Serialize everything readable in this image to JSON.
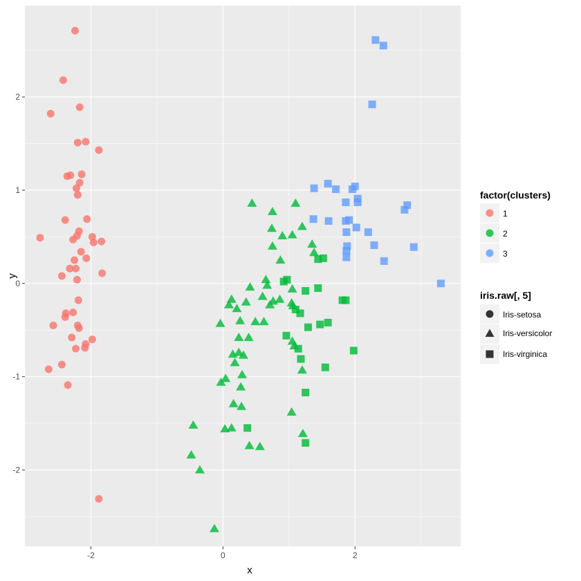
{
  "chart_data": {
    "type": "scatter",
    "xlabel": "x",
    "ylabel": "y",
    "xlim": [
      -3.0,
      3.6
    ],
    "ylim": [
      -2.82,
      2.98
    ],
    "x_ticks": [
      {
        "value": -2,
        "label": "-2"
      },
      {
        "value": 0,
        "label": "0"
      },
      {
        "value": 2,
        "label": "2"
      }
    ],
    "y_ticks": [
      {
        "value": -2,
        "label": "-2"
      },
      {
        "value": -1,
        "label": "-1"
      },
      {
        "value": 0,
        "label": "0"
      },
      {
        "value": 1,
        "label": "1"
      },
      {
        "value": 2,
        "label": "2"
      }
    ],
    "grid": true,
    "background_color": "#ebebeb",
    "legends": [
      {
        "title": "factor(clusters)",
        "type": "color",
        "entries": [
          {
            "label": "1",
            "color": "#f8766d"
          },
          {
            "label": "2",
            "color": "#00ba38"
          },
          {
            "label": "3",
            "color": "#619cff"
          }
        ]
      },
      {
        "title": "iris.raw[, 5]",
        "type": "shape",
        "entries": [
          {
            "label": "Iris-setosa",
            "shape": "circle"
          },
          {
            "label": "Iris-versicolor",
            "shape": "triangle"
          },
          {
            "label": "Iris-virginica",
            "shape": "square"
          }
        ]
      }
    ],
    "series": [
      {
        "name": "setosa",
        "shape": "circle",
        "points": [
          [
            -2.24,
            2.71
          ],
          [
            -2.42,
            2.18
          ],
          [
            -2.17,
            1.89
          ],
          [
            -2.61,
            1.82
          ],
          [
            -1.88,
            1.43
          ],
          [
            -2.2,
            1.51
          ],
          [
            -2.08,
            1.52
          ],
          [
            -2.36,
            1.15
          ],
          [
            -2.31,
            1.16
          ],
          [
            -2.14,
            1.17
          ],
          [
            -2.17,
            1.08
          ],
          [
            -2.22,
            1.02
          ],
          [
            -2.2,
            0.95
          ],
          [
            -2.39,
            0.68
          ],
          [
            -2.06,
            0.69
          ],
          [
            -2.77,
            0.49
          ],
          [
            -2.18,
            0.56
          ],
          [
            -2.21,
            0.51
          ],
          [
            -2.27,
            0.47
          ],
          [
            -1.98,
            0.5
          ],
          [
            -1.84,
            0.45
          ],
          [
            -1.96,
            0.44
          ],
          [
            -2.15,
            0.34
          ],
          [
            -2.07,
            0.27
          ],
          [
            -2.25,
            0.25
          ],
          [
            -2.32,
            0.16
          ],
          [
            -2.23,
            0.16
          ],
          [
            -1.83,
            0.11
          ],
          [
            -2.44,
            0.08
          ],
          [
            -2.21,
            0.04
          ],
          [
            -2.19,
            -0.18
          ],
          [
            -2.38,
            -0.32
          ],
          [
            -2.27,
            -0.31
          ],
          [
            -2.39,
            -0.36
          ],
          [
            -2.2,
            -0.45
          ],
          [
            -2.18,
            -0.48
          ],
          [
            -2.57,
            -0.45
          ],
          [
            -2.29,
            -0.58
          ],
          [
            -1.98,
            -0.6
          ],
          [
            -2.08,
            -0.65
          ],
          [
            -2.09,
            -0.69
          ],
          [
            -2.23,
            -0.7
          ],
          [
            -2.44,
            -0.87
          ],
          [
            -2.64,
            -0.92
          ],
          [
            -2.35,
            -1.09
          ],
          [
            -1.88,
            -2.31
          ]
        ]
      },
      {
        "name": "versicolor",
        "shape": "triangle",
        "points": [
          [
            0.44,
            0.86
          ],
          [
            1.1,
            0.86
          ],
          [
            0.75,
            0.77
          ],
          [
            1.2,
            0.61
          ],
          [
            0.74,
            0.59
          ],
          [
            0.9,
            0.51
          ],
          [
            1.05,
            0.52
          ],
          [
            0.75,
            0.4
          ],
          [
            1.35,
            0.42
          ],
          [
            1.38,
            0.33
          ],
          [
            0.87,
            0.25
          ],
          [
            0.65,
            0.04
          ],
          [
            0.67,
            -0.02
          ],
          [
            0.41,
            -0.04
          ],
          [
            1.05,
            -0.06
          ],
          [
            0.6,
            -0.14
          ],
          [
            0.86,
            -0.17
          ],
          [
            0.35,
            -0.2
          ],
          [
            0.76,
            -0.19
          ],
          [
            0.13,
            -0.17
          ],
          [
            0.71,
            -0.23
          ],
          [
            1.04,
            -0.21
          ],
          [
            0.09,
            -0.23
          ],
          [
            0.21,
            -0.27
          ],
          [
            1.06,
            -0.24
          ],
          [
            0.26,
            -0.4
          ],
          [
            0.49,
            -0.41
          ],
          [
            0.62,
            -0.41
          ],
          [
            -0.04,
            -0.43
          ],
          [
            0.24,
            -0.58
          ],
          [
            0.39,
            -0.58
          ],
          [
            1.05,
            -0.62
          ],
          [
            0.15,
            -0.76
          ],
          [
            0.24,
            -0.74
          ],
          [
            1.08,
            -0.67
          ],
          [
            0.31,
            -0.77
          ],
          [
            0.18,
            -0.85
          ],
          [
            1.2,
            -0.93
          ],
          [
            0.29,
            -0.98
          ],
          [
            0.04,
            -1.02
          ],
          [
            -0.03,
            -1.06
          ],
          [
            0.27,
            -1.11
          ],
          [
            0.16,
            -1.29
          ],
          [
            0.28,
            -1.32
          ],
          [
            1.04,
            -1.38
          ],
          [
            -0.45,
            -1.52
          ],
          [
            0.13,
            -1.55
          ],
          [
            0.03,
            -1.56
          ],
          [
            1.21,
            -1.61
          ],
          [
            0.4,
            -1.74
          ],
          [
            0.56,
            -1.75
          ],
          [
            -0.48,
            -1.84
          ],
          [
            -0.35,
            -2.0
          ],
          [
            -0.13,
            -2.63
          ]
        ]
      },
      {
        "name": "virginica",
        "shape": "square",
        "points": [
          [
            2.31,
            2.61
          ],
          [
            2.43,
            2.55
          ],
          [
            2.26,
            1.92
          ],
          [
            1.59,
            1.07
          ],
          [
            1.38,
            1.02
          ],
          [
            1.71,
            1.01
          ],
          [
            1.96,
            1.01
          ],
          [
            2.0,
            1.04
          ],
          [
            2.04,
            0.91
          ],
          [
            2.04,
            0.87
          ],
          [
            1.86,
            0.87
          ],
          [
            2.79,
            0.84
          ],
          [
            2.75,
            0.79
          ],
          [
            1.37,
            0.69
          ],
          [
            1.6,
            0.67
          ],
          [
            1.86,
            0.67
          ],
          [
            1.91,
            0.68
          ],
          [
            2.02,
            0.6
          ],
          [
            1.87,
            0.55
          ],
          [
            2.2,
            0.55
          ],
          [
            1.88,
            0.4
          ],
          [
            1.87,
            0.35
          ],
          [
            2.29,
            0.41
          ],
          [
            2.89,
            0.39
          ],
          [
            1.87,
            0.28
          ],
          [
            2.44,
            0.24
          ],
          [
            3.3,
            0.0
          ],
          [
            1.44,
            0.26
          ],
          [
            1.52,
            0.27
          ],
          [
            0.97,
            0.04
          ],
          [
            0.92,
            0.02
          ],
          [
            1.44,
            -0.05
          ],
          [
            1.25,
            -0.08
          ],
          [
            1.81,
            -0.18
          ],
          [
            1.86,
            -0.18
          ],
          [
            1.1,
            -0.28
          ],
          [
            1.17,
            -0.32
          ],
          [
            1.59,
            -0.42
          ],
          [
            1.47,
            -0.44
          ],
          [
            1.29,
            -0.47
          ],
          [
            0.96,
            -0.56
          ],
          [
            1.14,
            -0.7
          ],
          [
            1.98,
            -0.72
          ],
          [
            1.18,
            -0.81
          ],
          [
            1.55,
            -0.9
          ],
          [
            1.25,
            -1.17
          ],
          [
            0.37,
            -1.55
          ],
          [
            1.25,
            -1.71
          ]
        ],
        "point_colors": [
          "#619cff",
          "#619cff",
          "#619cff",
          "#619cff",
          "#619cff",
          "#619cff",
          "#619cff",
          "#619cff",
          "#619cff",
          "#619cff",
          "#619cff",
          "#619cff",
          "#619cff",
          "#619cff",
          "#619cff",
          "#619cff",
          "#619cff",
          "#619cff",
          "#619cff",
          "#619cff",
          "#619cff",
          "#619cff",
          "#619cff",
          "#619cff",
          "#619cff",
          "#619cff",
          "#619cff",
          "#00ba38",
          "#00ba38",
          "#00ba38",
          "#00ba38",
          "#00ba38",
          "#00ba38",
          "#00ba38",
          "#00ba38",
          "#00ba38",
          "#00ba38",
          "#00ba38",
          "#00ba38",
          "#00ba38",
          "#00ba38",
          "#00ba38",
          "#00ba38",
          "#00ba38",
          "#00ba38",
          "#00ba38",
          "#00ba38",
          "#00ba38"
        ]
      }
    ],
    "series_colors": {
      "setosa": "#f8766d",
      "versicolor": "#00ba38",
      "virginica": "#619cff"
    }
  }
}
